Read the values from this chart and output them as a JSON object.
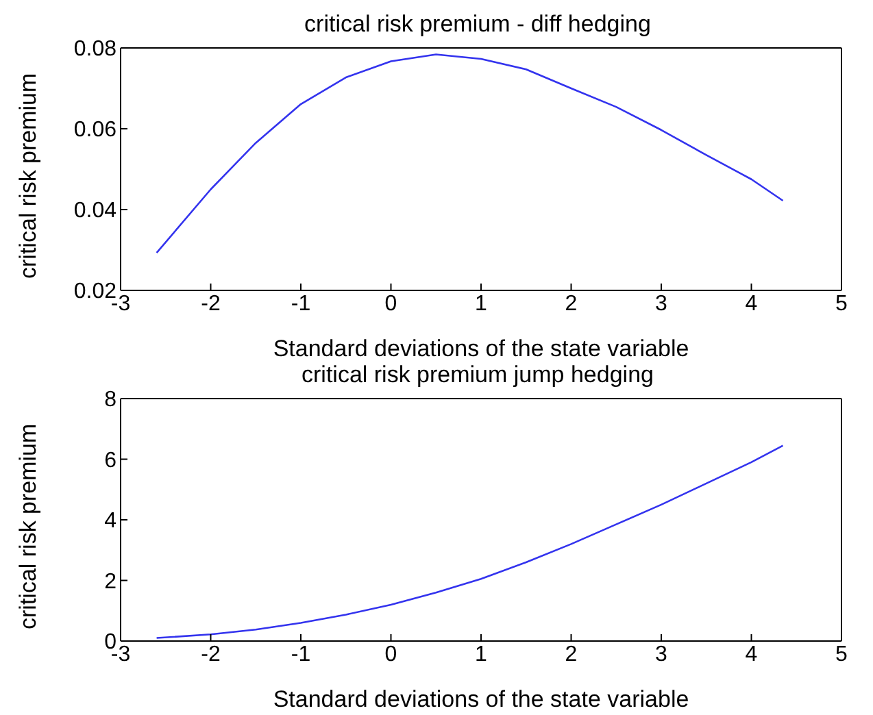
{
  "chart_data": [
    {
      "type": "line",
      "title": "critical risk premium - diff hedging",
      "xlabel": "Standard deviations of the state variable",
      "ylabel": "critical risk premium",
      "x": [
        -2.6,
        -2,
        -1.5,
        -1,
        -0.5,
        0,
        0.5,
        1,
        1.5,
        2,
        2.5,
        3,
        3.5,
        4,
        4.35
      ],
      "series": [
        {
          "color": "#3333ee",
          "values": [
            0.0293,
            0.045,
            0.0565,
            0.0661,
            0.0727,
            0.0767,
            0.0784,
            0.0773,
            0.0747,
            0.07,
            0.0654,
            0.0597,
            0.0535,
            0.0475,
            0.0422
          ]
        }
      ],
      "xlim": [
        -3,
        5
      ],
      "xticks": [
        -3,
        -2,
        -1,
        0,
        1,
        2,
        3,
        4,
        5
      ],
      "ylim": [
        0.02,
        0.08
      ],
      "yticks": [
        0.02,
        0.04,
        0.06,
        0.08
      ],
      "grid": false,
      "legend": false,
      "marker": "none",
      "line_style": "solid"
    },
    {
      "type": "line",
      "title": "critical risk premium jump hedging",
      "xlabel": "Standard deviations of the state variable",
      "ylabel": "critical risk premium",
      "x": [
        -2.6,
        -2,
        -1.5,
        -1,
        -0.5,
        0,
        0.5,
        1,
        1.5,
        2,
        2.5,
        3,
        3.5,
        4,
        4.35
      ],
      "series": [
        {
          "color": "#3333ee",
          "values": [
            0.1,
            0.22,
            0.38,
            0.6,
            0.87,
            1.2,
            1.6,
            2.05,
            2.6,
            3.2,
            3.85,
            4.5,
            5.2,
            5.9,
            6.45
          ]
        }
      ],
      "xlim": [
        -3,
        5
      ],
      "xticks": [
        -3,
        -2,
        -1,
        0,
        1,
        2,
        3,
        4,
        5
      ],
      "ylim": [
        0,
        8
      ],
      "yticks": [
        0,
        2,
        4,
        6,
        8
      ],
      "grid": false,
      "legend": false,
      "marker": "none",
      "line_style": "solid"
    }
  ]
}
